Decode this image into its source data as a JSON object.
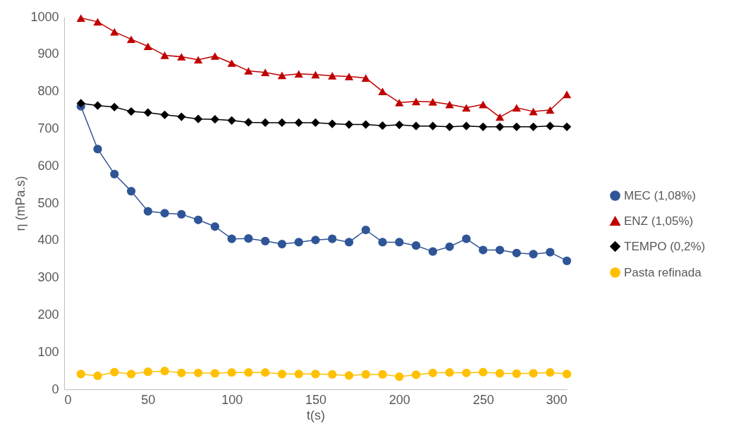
{
  "chart_data": {
    "type": "line",
    "xlabel": "t(s)",
    "ylabel": "η (mPa.s)",
    "x": [
      10,
      20,
      30,
      40,
      50,
      60,
      70,
      80,
      90,
      100,
      110,
      120,
      130,
      140,
      150,
      160,
      170,
      180,
      190,
      200,
      210,
      220,
      230,
      240,
      250,
      260,
      270,
      280,
      290,
      300
    ],
    "xlim": [
      0,
      300
    ],
    "xticks": [
      0,
      50,
      100,
      150,
      200,
      250,
      300
    ],
    "ylim": [
      0,
      1000
    ],
    "yticks": [
      0,
      100,
      200,
      300,
      400,
      500,
      600,
      700,
      800,
      900,
      1000
    ],
    "grid": false,
    "legend": "right",
    "series": [
      {
        "name": "MEC (1,08%)",
        "color": "#2f5597",
        "marker": "circle",
        "values": [
          760,
          645,
          578,
          532,
          478,
          473,
          470,
          455,
          437,
          404,
          405,
          398,
          390,
          395,
          401,
          404,
          395,
          428,
          395,
          395,
          386,
          370,
          383,
          404,
          374,
          374,
          366,
          363,
          368,
          345
        ]
      },
      {
        "name": "ENZ (1,05%)",
        "color": "#c00000",
        "marker": "triangle",
        "values": [
          997,
          987,
          960,
          940,
          921,
          897,
          893,
          885,
          895,
          876,
          855,
          851,
          843,
          847,
          845,
          842,
          840,
          836,
          800,
          770,
          773,
          772,
          765,
          756,
          765,
          731,
          756,
          746,
          750,
          792
        ]
      },
      {
        "name": "TEMPO (0,2%)",
        "color": "#000000",
        "marker": "diamond",
        "values": [
          768,
          762,
          758,
          746,
          743,
          737,
          732,
          726,
          725,
          722,
          717,
          716,
          716,
          716,
          716,
          713,
          711,
          711,
          708,
          710,
          707,
          707,
          705,
          707,
          705,
          705,
          705,
          705,
          707,
          705
        ]
      },
      {
        "name": "Pasta refinada",
        "color": "#ffc000",
        "marker": "circle",
        "values": [
          41,
          36,
          46,
          41,
          47,
          49,
          44,
          44,
          43,
          45,
          45,
          45,
          41,
          41,
          41,
          40,
          37,
          40,
          40,
          34,
          39,
          44,
          45,
          44,
          46,
          43,
          42,
          43,
          45,
          41
        ]
      }
    ]
  }
}
